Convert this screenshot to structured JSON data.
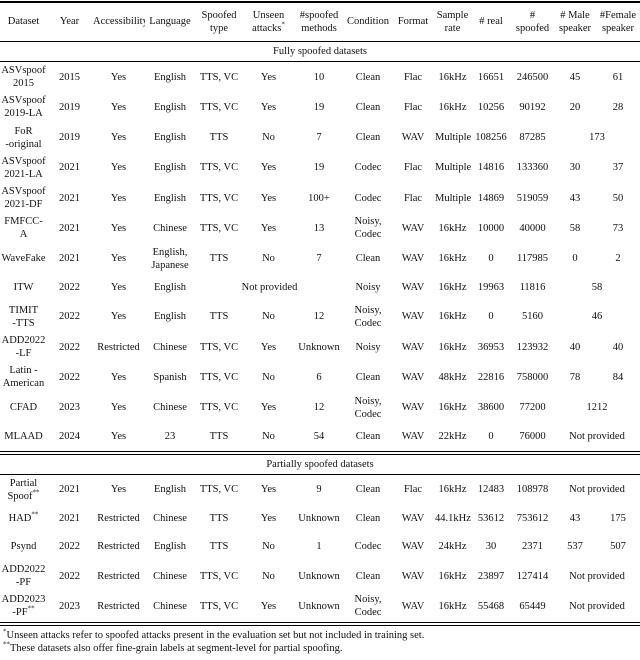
{
  "table": {
    "columns": [
      {
        "t": "Dataset"
      },
      {
        "t": "Year"
      },
      {
        "t": "Accessibility"
      },
      {
        "t": "Language"
      },
      {
        "t": "Spoofed\ntype"
      },
      {
        "t": "Unseen\nattacks",
        "sup": "*"
      },
      {
        "t": "#spoofed\nmethods"
      },
      {
        "t": "Condition"
      },
      {
        "t": "Format"
      },
      {
        "t": "Sample\nrate"
      },
      {
        "t": "# real"
      },
      {
        "t": "#\nspoofed"
      },
      {
        "t": "# Male\nspeaker"
      },
      {
        "t": "#Female\nspeaker"
      }
    ],
    "sections": [
      {
        "title": "Fully spoofed datasets",
        "rows": [
          [
            "ASVspoof\n2015",
            "2015",
            "Yes",
            "English",
            "TTS, VC",
            "Yes",
            "10",
            "Clean",
            "Flac",
            "16kHz",
            "16651",
            "246500",
            "45",
            "61"
          ],
          [
            "ASVspoof\n2019-LA",
            "2019",
            "Yes",
            "English",
            "TTS, VC",
            "Yes",
            "19",
            "Clean",
            "Flac",
            "16kHz",
            "10256",
            "90192",
            "20",
            "28"
          ],
          [
            "FoR\n-original",
            "2019",
            "Yes",
            "English",
            "TTS",
            "No",
            "7",
            "Clean",
            "WAV",
            "Multiple",
            "108256",
            "87285",
            {
              "t": "173",
              "cs": 2
            }
          ],
          [
            "ASVspoof\n2021-LA",
            "2021",
            "Yes",
            "English",
            "TTS, VC",
            "Yes",
            "19",
            "Codec",
            "Flac",
            "Multiple",
            "14816",
            "133360",
            "30",
            "37"
          ],
          [
            "ASVspoof\n2021-DF",
            "2021",
            "Yes",
            "English",
            "TTS, VC",
            "Yes",
            "100+",
            "Codec",
            "Flac",
            "Multiple",
            "14869",
            "519059",
            "43",
            "50"
          ],
          [
            "FMFCC-\nA",
            "2021",
            "Yes",
            "Chinese",
            "TTS, VC",
            "Yes",
            "13",
            "Noisy,\nCodec",
            "WAV",
            "16kHz",
            "10000",
            "40000",
            "58",
            "73"
          ],
          [
            "WaveFake",
            "2021",
            "Yes",
            "English,\nJapanese",
            "TTS",
            "No",
            "7",
            "Clean",
            "WAV",
            "16kHz",
            "0",
            "117985",
            "0",
            "2"
          ],
          [
            "ITW",
            "2022",
            "Yes",
            "English",
            {
              "t": "Not provided",
              "cs": 3
            },
            "Noisy",
            "WAV",
            "16kHz",
            "19963",
            "11816",
            {
              "t": "58",
              "cs": 2
            }
          ],
          [
            "TIMIT\n-TTS",
            "2022",
            "Yes",
            "English",
            "TTS",
            "No",
            "12",
            "Noisy,\nCodec",
            "WAV",
            "16kHz",
            "0",
            "5160",
            {
              "t": "46",
              "cs": 2
            }
          ],
          [
            "ADD2022\n-LF",
            "2022",
            "Restricted",
            "Chinese",
            "TTS, VC",
            "Yes",
            "Unknown",
            "Noisy",
            "WAV",
            "16kHz",
            "36953",
            "123932",
            "40",
            "40"
          ],
          [
            "Latin -\nAmerican",
            "2022",
            "Yes",
            "Spanish",
            "TTS, VC",
            "No",
            "6",
            "Clean",
            "WAV",
            "48kHz",
            "22816",
            "758000",
            "78",
            "84"
          ],
          [
            "CFAD",
            "2023",
            "Yes",
            "Chinese",
            "TTS, VC",
            "Yes",
            "12",
            "Noisy,\nCodec",
            "WAV",
            "16kHz",
            "38600",
            "77200",
            {
              "t": "1212",
              "cs": 2
            }
          ],
          [
            "MLAAD",
            "2024",
            "Yes",
            "23",
            "TTS",
            "No",
            "54",
            "Clean",
            "WAV",
            "22kHz",
            "0",
            "76000",
            {
              "t": "Not provided",
              "cs": 2
            }
          ]
        ]
      },
      {
        "title": "Partially spoofed datasets",
        "rows": [
          [
            {
              "t": "Partial\nSpoof",
              "sup": "**"
            },
            "2021",
            "Yes",
            "English",
            "TTS, VC",
            "Yes",
            "9",
            "Clean",
            "Flac",
            "16kHz",
            "12483",
            "108978",
            {
              "t": "Not provided",
              "cs": 2
            }
          ],
          [
            {
              "t": "HAD",
              "sup": "**"
            },
            "2021",
            "Restricted",
            "Chinese",
            "TTS",
            "Yes",
            "Unknown",
            "Clean",
            "WAV",
            "44.1kHz",
            "53612",
            "753612",
            "43",
            "175"
          ],
          [
            "Psynd",
            "2022",
            "Restricted",
            "English",
            "TTS",
            "No",
            "1",
            "Codec",
            "WAV",
            "24kHz",
            "30",
            "2371",
            "537",
            "507"
          ],
          [
            "ADD2022\n-PF",
            "2022",
            "Restricted",
            "Chinese",
            "TTS, VC",
            "No",
            "Unknown",
            "Clean",
            "WAV",
            "16kHz",
            "23897",
            "127414",
            {
              "t": "Not provided",
              "cs": 2
            }
          ],
          [
            {
              "t": "ADD2023\n-PF",
              "sup": "**"
            },
            "2023",
            "Restricted",
            "Chinese",
            "TTS, VC",
            "Yes",
            "Unknown",
            "Noisy,\nCodec",
            "WAV",
            "16kHz",
            "55468",
            "65449",
            {
              "t": "Not provided",
              "cs": 2
            }
          ]
        ]
      }
    ],
    "footnotes": [
      {
        "mark": "*",
        "text": "Unseen attacks refer to spoofed attacks present in the evaluation set but not included in training set."
      },
      {
        "mark": "**",
        "text": "These datasets also offer fine-grain labels at segment-level for partial spoofing."
      }
    ]
  }
}
